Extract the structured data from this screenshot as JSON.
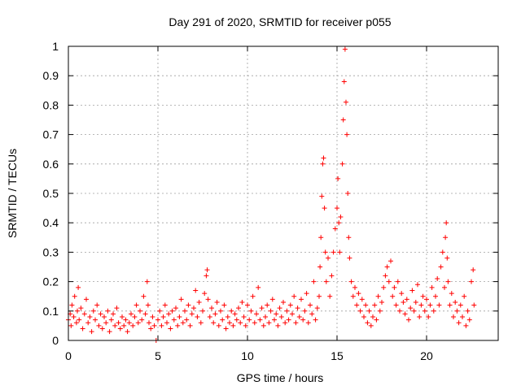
{
  "chart_data": {
    "type": "scatter",
    "title": "Day 291 of 2020, SRMTID for receiver p055",
    "xlabel": "GPS time / hours",
    "ylabel": "SRMTID / TECUs",
    "xlim": [
      0,
      24
    ],
    "ylim": [
      0,
      1
    ],
    "xticks": [
      0,
      5,
      10,
      15,
      20
    ],
    "xtick_labels": [
      "0",
      "5",
      "10",
      "15",
      "20"
    ],
    "yticks": [
      0,
      0.1,
      0.2,
      0.3,
      0.4,
      0.5,
      0.6,
      0.7,
      0.8,
      0.9,
      1
    ],
    "ytick_labels": [
      "0",
      "0.1",
      "0.2",
      "0.3",
      "0.4",
      "0.5",
      "0.6",
      "0.7",
      "0.8",
      "0.9",
      "1"
    ],
    "grid": true,
    "marker": "+",
    "color": "#ff0000",
    "series": [
      {
        "name": "SRMTID",
        "points": [
          [
            0.0,
            0.07
          ],
          [
            0.1,
            0.09
          ],
          [
            0.15,
            0.05
          ],
          [
            0.2,
            0.12
          ],
          [
            0.3,
            0.08
          ],
          [
            0.35,
            0.15
          ],
          [
            0.45,
            0.06
          ],
          [
            0.5,
            0.1
          ],
          [
            0.55,
            0.18
          ],
          [
            0.6,
            0.07
          ],
          [
            0.7,
            0.11
          ],
          [
            0.8,
            0.04
          ],
          [
            0.9,
            0.09
          ],
          [
            1.0,
            0.14
          ],
          [
            1.1,
            0.06
          ],
          [
            1.2,
            0.08
          ],
          [
            1.3,
            0.03
          ],
          [
            1.4,
            0.1
          ],
          [
            1.5,
            0.07
          ],
          [
            1.6,
            0.12
          ],
          [
            1.7,
            0.05
          ],
          [
            1.8,
            0.09
          ],
          [
            1.9,
            0.04
          ],
          [
            2.0,
            0.08
          ],
          [
            2.1,
            0.06
          ],
          [
            2.2,
            0.1
          ],
          [
            2.3,
            0.03
          ],
          [
            2.4,
            0.07
          ],
          [
            2.5,
            0.09
          ],
          [
            2.6,
            0.05
          ],
          [
            2.7,
            0.11
          ],
          [
            2.8,
            0.06
          ],
          [
            2.9,
            0.04
          ],
          [
            3.0,
            0.08
          ],
          [
            3.1,
            0.05
          ],
          [
            3.2,
            0.07
          ],
          [
            3.3,
            0.03
          ],
          [
            3.4,
            0.06
          ],
          [
            3.5,
            0.09
          ],
          [
            3.6,
            0.05
          ],
          [
            3.7,
            0.08
          ],
          [
            3.8,
            0.12
          ],
          [
            3.9,
            0.06
          ],
          [
            4.0,
            0.1
          ],
          [
            4.1,
            0.07
          ],
          [
            4.2,
            0.15
          ],
          [
            4.3,
            0.09
          ],
          [
            4.4,
            0.2
          ],
          [
            4.45,
            0.12
          ],
          [
            4.5,
            0.06
          ],
          [
            4.6,
            0.04
          ],
          [
            4.7,
            0.08
          ],
          [
            4.8,
            0.05
          ],
          [
            4.9,
            0.0
          ],
          [
            5.0,
            0.07
          ],
          [
            5.1,
            0.1
          ],
          [
            5.2,
            0.05
          ],
          [
            5.3,
            0.08
          ],
          [
            5.4,
            0.12
          ],
          [
            5.5,
            0.06
          ],
          [
            5.6,
            0.09
          ],
          [
            5.7,
            0.04
          ],
          [
            5.8,
            0.1
          ],
          [
            5.9,
            0.07
          ],
          [
            6.0,
            0.11
          ],
          [
            6.1,
            0.05
          ],
          [
            6.2,
            0.08
          ],
          [
            6.3,
            0.14
          ],
          [
            6.4,
            0.06
          ],
          [
            6.5,
            0.1
          ],
          [
            6.6,
            0.07
          ],
          [
            6.7,
            0.12
          ],
          [
            6.8,
            0.05
          ],
          [
            6.9,
            0.09
          ],
          [
            7.0,
            0.11
          ],
          [
            7.1,
            0.17
          ],
          [
            7.2,
            0.08
          ],
          [
            7.3,
            0.13
          ],
          [
            7.4,
            0.06
          ],
          [
            7.5,
            0.1
          ],
          [
            7.6,
            0.16
          ],
          [
            7.7,
            0.22
          ],
          [
            7.75,
            0.24
          ],
          [
            7.8,
            0.14
          ],
          [
            7.9,
            0.08
          ],
          [
            8.0,
            0.11
          ],
          [
            8.1,
            0.06
          ],
          [
            8.2,
            0.09
          ],
          [
            8.3,
            0.13
          ],
          [
            8.4,
            0.05
          ],
          [
            8.5,
            0.1
          ],
          [
            8.6,
            0.07
          ],
          [
            8.7,
            0.12
          ],
          [
            8.8,
            0.04
          ],
          [
            8.9,
            0.08
          ],
          [
            9.0,
            0.06
          ],
          [
            9.1,
            0.1
          ],
          [
            9.2,
            0.05
          ],
          [
            9.3,
            0.09
          ],
          [
            9.4,
            0.07
          ],
          [
            9.5,
            0.11
          ],
          [
            9.6,
            0.06
          ],
          [
            9.7,
            0.13
          ],
          [
            9.8,
            0.08
          ],
          [
            9.9,
            0.05
          ],
          [
            10.0,
            0.12
          ],
          [
            10.1,
            0.07
          ],
          [
            10.2,
            0.1
          ],
          [
            10.3,
            0.15
          ],
          [
            10.4,
            0.06
          ],
          [
            10.5,
            0.09
          ],
          [
            10.6,
            0.18
          ],
          [
            10.7,
            0.07
          ],
          [
            10.8,
            0.11
          ],
          [
            10.9,
            0.05
          ],
          [
            11.0,
            0.08
          ],
          [
            11.1,
            0.12
          ],
          [
            11.2,
            0.06
          ],
          [
            11.3,
            0.1
          ],
          [
            11.4,
            0.14
          ],
          [
            11.5,
            0.07
          ],
          [
            11.6,
            0.09
          ],
          [
            11.7,
            0.05
          ],
          [
            11.8,
            0.11
          ],
          [
            11.9,
            0.08
          ],
          [
            12.0,
            0.13
          ],
          [
            12.1,
            0.06
          ],
          [
            12.2,
            0.1
          ],
          [
            12.3,
            0.07
          ],
          [
            12.4,
            0.12
          ],
          [
            12.5,
            0.09
          ],
          [
            12.6,
            0.15
          ],
          [
            12.7,
            0.06
          ],
          [
            12.8,
            0.11
          ],
          [
            12.9,
            0.08
          ],
          [
            13.0,
            0.14
          ],
          [
            13.1,
            0.07
          ],
          [
            13.2,
            0.1
          ],
          [
            13.3,
            0.16
          ],
          [
            13.4,
            0.06
          ],
          [
            13.5,
            0.12
          ],
          [
            13.6,
            0.09
          ],
          [
            13.7,
            0.2
          ],
          [
            13.8,
            0.07
          ],
          [
            13.9,
            0.11
          ],
          [
            14.0,
            0.15
          ],
          [
            14.05,
            0.25
          ],
          [
            14.1,
            0.35
          ],
          [
            14.15,
            0.49
          ],
          [
            14.2,
            0.6
          ],
          [
            14.25,
            0.62
          ],
          [
            14.3,
            0.45
          ],
          [
            14.35,
            0.3
          ],
          [
            14.4,
            0.2
          ],
          [
            14.5,
            0.28
          ],
          [
            14.6,
            0.15
          ],
          [
            14.7,
            0.22
          ],
          [
            14.8,
            0.3
          ],
          [
            14.9,
            0.38
          ],
          [
            15.0,
            0.45
          ],
          [
            15.05,
            0.55
          ],
          [
            15.1,
            0.4
          ],
          [
            15.15,
            0.3
          ],
          [
            15.2,
            0.42
          ],
          [
            15.3,
            0.6
          ],
          [
            15.35,
            0.75
          ],
          [
            15.4,
            0.88
          ],
          [
            15.45,
            0.99
          ],
          [
            15.5,
            0.81
          ],
          [
            15.55,
            0.7
          ],
          [
            15.6,
            0.5
          ],
          [
            15.65,
            0.35
          ],
          [
            15.7,
            0.28
          ],
          [
            15.8,
            0.2
          ],
          [
            15.9,
            0.15
          ],
          [
            16.0,
            0.18
          ],
          [
            16.1,
            0.12
          ],
          [
            16.2,
            0.16
          ],
          [
            16.3,
            0.1
          ],
          [
            16.4,
            0.14
          ],
          [
            16.5,
            0.08
          ],
          [
            16.6,
            0.12
          ],
          [
            16.7,
            0.06
          ],
          [
            16.8,
            0.1
          ],
          [
            16.9,
            0.05
          ],
          [
            17.0,
            0.08
          ],
          [
            17.1,
            0.12
          ],
          [
            17.2,
            0.07
          ],
          [
            17.3,
            0.15
          ],
          [
            17.4,
            0.1
          ],
          [
            17.5,
            0.13
          ],
          [
            17.6,
            0.18
          ],
          [
            17.7,
            0.22
          ],
          [
            17.8,
            0.25
          ],
          [
            17.9,
            0.2
          ],
          [
            18.0,
            0.27
          ],
          [
            18.1,
            0.15
          ],
          [
            18.2,
            0.18
          ],
          [
            18.3,
            0.12
          ],
          [
            18.4,
            0.2
          ],
          [
            18.5,
            0.1
          ],
          [
            18.6,
            0.16
          ],
          [
            18.7,
            0.13
          ],
          [
            18.8,
            0.09
          ],
          [
            18.9,
            0.14
          ],
          [
            19.0,
            0.07
          ],
          [
            19.1,
            0.11
          ],
          [
            19.2,
            0.17
          ],
          [
            19.3,
            0.1
          ],
          [
            19.4,
            0.13
          ],
          [
            19.5,
            0.19
          ],
          [
            19.6,
            0.08
          ],
          [
            19.7,
            0.12
          ],
          [
            19.8,
            0.15
          ],
          [
            19.9,
            0.1
          ],
          [
            20.0,
            0.14
          ],
          [
            20.1,
            0.08
          ],
          [
            20.2,
            0.12
          ],
          [
            20.3,
            0.18
          ],
          [
            20.4,
            0.1
          ],
          [
            20.5,
            0.15
          ],
          [
            20.6,
            0.21
          ],
          [
            20.7,
            0.12
          ],
          [
            20.8,
            0.25
          ],
          [
            20.9,
            0.3
          ],
          [
            21.0,
            0.18
          ],
          [
            21.05,
            0.35
          ],
          [
            21.1,
            0.4
          ],
          [
            21.15,
            0.28
          ],
          [
            21.2,
            0.2
          ],
          [
            21.3,
            0.12
          ],
          [
            21.4,
            0.16
          ],
          [
            21.5,
            0.08
          ],
          [
            21.6,
            0.13
          ],
          [
            21.7,
            0.1
          ],
          [
            21.8,
            0.06
          ],
          [
            21.9,
            0.12
          ],
          [
            22.0,
            0.08
          ],
          [
            22.1,
            0.15
          ],
          [
            22.2,
            0.05
          ],
          [
            22.3,
            0.1
          ],
          [
            22.4,
            0.07
          ],
          [
            22.5,
            0.2
          ],
          [
            22.6,
            0.24
          ],
          [
            22.65,
            0.12
          ]
        ]
      }
    ]
  }
}
